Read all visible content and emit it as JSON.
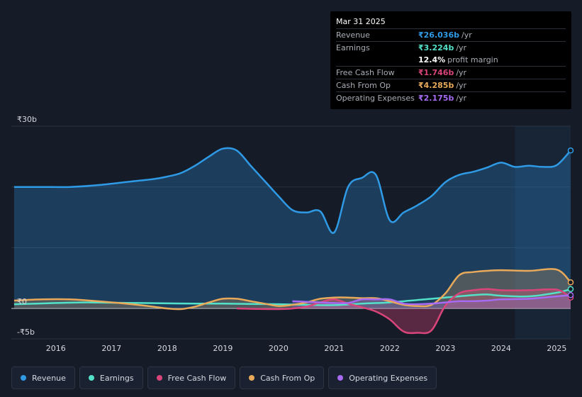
{
  "tooltip": {
    "date": "Mar 31 2025",
    "rows": [
      {
        "label": "Revenue",
        "value": "₹26.036b",
        "unit": "/yr",
        "color": "#2f9ae5"
      },
      {
        "label": "Earnings",
        "value": "₹3.224b",
        "unit": "/yr",
        "color": "#54e1c9"
      },
      {
        "margin_value": "12.4%",
        "margin_text": "profit margin"
      },
      {
        "label": "Free Cash Flow",
        "value": "₹1.746b",
        "unit": "/yr",
        "color": "#d9457a"
      },
      {
        "label": "Cash From Op",
        "value": "₹4.285b",
        "unit": "/yr",
        "color": "#e9a95a"
      },
      {
        "label": "Operating Expenses",
        "value": "₹2.175b",
        "unit": "/yr",
        "color": "#a66bf2"
      }
    ]
  },
  "chart_data": {
    "type": "area",
    "ylim": [
      -5,
      30
    ],
    "ytick_labels": [
      {
        "value": 30,
        "label": "₹30b"
      },
      {
        "value": 0,
        "label": "₹0"
      },
      {
        "value": -5,
        "label": "-₹5b"
      }
    ],
    "xlim": [
      2015.2,
      2025.25
    ],
    "xticks": [
      2016,
      2017,
      2018,
      2019,
      2020,
      2021,
      2022,
      2023,
      2024,
      2025
    ],
    "forecast_start": 2024.25,
    "series": [
      {
        "name": "Revenue",
        "color": "#2f9ae5",
        "fill": true,
        "x": [
          2015.25,
          2015.75,
          2016.25,
          2016.75,
          2017.25,
          2017.75,
          2018.0,
          2018.25,
          2018.5,
          2018.75,
          2019.0,
          2019.25,
          2019.5,
          2019.75,
          2020.0,
          2020.25,
          2020.5,
          2020.75,
          2021.0,
          2021.25,
          2021.5,
          2021.75,
          2022.0,
          2022.25,
          2022.5,
          2022.75,
          2023.0,
          2023.25,
          2023.5,
          2023.75,
          2024.0,
          2024.25,
          2024.5,
          2024.75,
          2025.0,
          2025.25
        ],
        "y": [
          20.0,
          20.0,
          20.0,
          20.3,
          20.8,
          21.3,
          21.7,
          22.3,
          23.5,
          25.0,
          26.3,
          26.0,
          23.5,
          21.0,
          18.5,
          16.2,
          15.8,
          16.0,
          12.5,
          20.0,
          21.5,
          22.0,
          14.5,
          15.8,
          17.0,
          18.5,
          20.8,
          22.0,
          22.5,
          23.2,
          24.0,
          23.3,
          23.5,
          23.3,
          23.6,
          26.0
        ]
      },
      {
        "name": "Earnings",
        "color": "#54e1c9",
        "fill": false,
        "x": [
          2015.25,
          2016.0,
          2016.5,
          2017.0,
          2017.5,
          2018.0,
          2018.5,
          2019.0,
          2019.5,
          2020.0,
          2020.5,
          2021.0,
          2021.5,
          2022.0,
          2022.5,
          2023.0,
          2023.5,
          2023.75,
          2024.0,
          2024.5,
          2025.0,
          2025.25
        ],
        "y": [
          0.7,
          0.9,
          1.0,
          0.95,
          0.9,
          0.85,
          0.8,
          0.8,
          0.75,
          0.7,
          0.6,
          0.55,
          0.8,
          1.0,
          1.4,
          1.8,
          2.2,
          2.3,
          2.1,
          2.0,
          2.6,
          3.2
        ]
      },
      {
        "name": "Free Cash Flow",
        "color": "#d9457a",
        "fill": true,
        "x": [
          2019.25,
          2019.5,
          2020.0,
          2020.25,
          2020.5,
          2020.75,
          2021.0,
          2021.25,
          2021.5,
          2021.75,
          2022.0,
          2022.25,
          2022.5,
          2022.75,
          2023.0,
          2023.25,
          2023.5,
          2023.75,
          2024.0,
          2024.5,
          2025.0,
          2025.25
        ],
        "y": [
          0.0,
          -0.05,
          -0.1,
          0.0,
          0.3,
          1.0,
          1.5,
          0.8,
          0.2,
          -0.5,
          -1.8,
          -3.8,
          -4.0,
          -3.6,
          0.5,
          2.5,
          3.0,
          3.2,
          3.0,
          3.0,
          3.1,
          1.8
        ]
      },
      {
        "name": "Cash From Op",
        "color": "#e9a95a",
        "fill": true,
        "x": [
          2015.25,
          2015.75,
          2016.25,
          2016.75,
          2017.25,
          2017.75,
          2018.0,
          2018.25,
          2018.5,
          2018.75,
          2019.0,
          2019.25,
          2019.5,
          2019.75,
          2020.0,
          2020.25,
          2020.5,
          2020.75,
          2021.0,
          2021.25,
          2021.5,
          2021.75,
          2022.0,
          2022.25,
          2022.5,
          2022.75,
          2023.0,
          2023.25,
          2023.5,
          2023.75,
          2024.0,
          2024.5,
          2025.0,
          2025.25
        ],
        "y": [
          1.3,
          1.5,
          1.5,
          1.2,
          0.8,
          0.3,
          0.0,
          -0.1,
          0.3,
          1.0,
          1.6,
          1.6,
          1.2,
          0.8,
          0.4,
          0.6,
          1.0,
          1.6,
          1.8,
          1.8,
          1.7,
          1.7,
          1.2,
          0.6,
          0.4,
          0.6,
          2.5,
          5.5,
          6.0,
          6.2,
          6.3,
          6.2,
          6.4,
          4.3
        ]
      },
      {
        "name": "Operating Expenses",
        "color": "#a66bf2",
        "fill": true,
        "x": [
          2020.25,
          2020.5,
          2020.75,
          2021.0,
          2021.25,
          2021.5,
          2021.75,
          2022.0,
          2022.25,
          2022.5,
          2022.75,
          2023.0,
          2023.25,
          2023.5,
          2023.75,
          2024.0,
          2024.5,
          2025.0,
          2025.25
        ],
        "y": [
          1.2,
          1.1,
          1.0,
          0.9,
          0.9,
          1.5,
          1.5,
          1.5,
          0.8,
          0.7,
          0.8,
          1.0,
          1.2,
          1.2,
          1.3,
          1.5,
          1.6,
          2.0,
          2.2
        ]
      }
    ]
  },
  "legend": [
    {
      "label": "Revenue",
      "color": "#2f9ae5"
    },
    {
      "label": "Earnings",
      "color": "#54e1c9"
    },
    {
      "label": "Free Cash Flow",
      "color": "#d9457a"
    },
    {
      "label": "Cash From Op",
      "color": "#e9a95a"
    },
    {
      "label": "Operating Expenses",
      "color": "#a66bf2"
    }
  ]
}
